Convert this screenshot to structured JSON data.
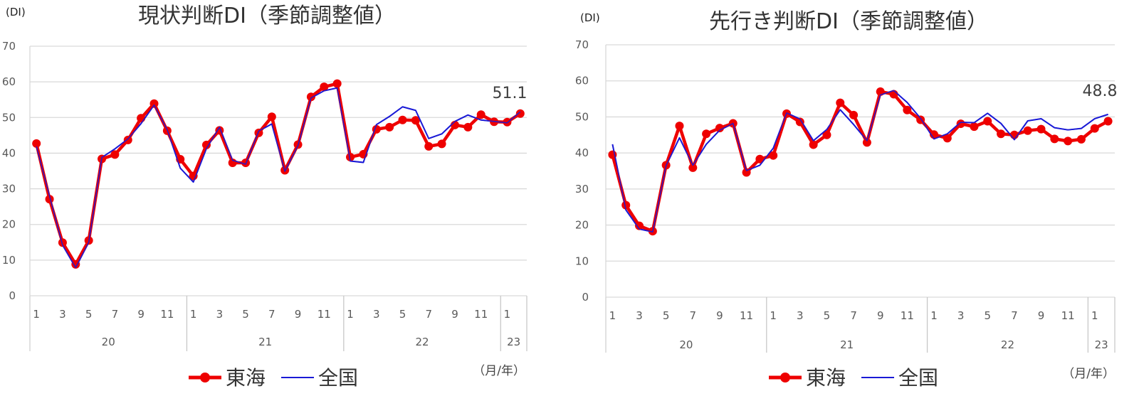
{
  "chart_data": [
    {
      "type": "line",
      "title": "現状判断DI（季節調整値）",
      "ylabel": "(DI)",
      "xunit": "（月/年）",
      "ylim": [
        0,
        70
      ],
      "yticks": [
        "0",
        "10",
        "20",
        "30",
        "40",
        "50",
        "60",
        "70"
      ],
      "x_month_labels": [
        "1",
        "3",
        "5",
        "7",
        "9",
        "11",
        "1",
        "3",
        "5",
        "7",
        "9",
        "11",
        "1",
        "3",
        "5",
        "7",
        "9",
        "11",
        "1"
      ],
      "x_year_labels": [
        "20",
        "21",
        "22",
        "23"
      ],
      "grid": true,
      "legend_position": "bottom",
      "annotation": "51.1",
      "colors": {
        "tokai": "#ee0000",
        "zenkoku": "#1a1ad6"
      },
      "series": [
        {
          "name": "東海",
          "values": [
            42.7,
            27.1,
            14.9,
            8.8,
            15.5,
            38.4,
            39.6,
            43.7,
            49.8,
            53.9,
            46.3,
            38.3,
            33.6,
            42.3,
            46.4,
            37.3,
            37.3,
            45.7,
            50.2,
            35.2,
            42.4,
            55.8,
            58.6,
            59.5,
            38.9,
            39.7,
            46.7,
            47.3,
            49.3,
            49.2,
            41.9,
            42.6,
            47.9,
            47.3,
            50.8,
            48.8,
            48.7,
            51.1
          ]
        },
        {
          "name": "全国",
          "values": [
            41.9,
            28.0,
            14.2,
            7.9,
            15.0,
            38.8,
            41.2,
            44.0,
            48.3,
            53.5,
            46.6,
            35.8,
            31.9,
            41.3,
            47.3,
            38.0,
            36.9,
            46.2,
            48.2,
            34.9,
            42.1,
            55.5,
            57.5,
            58.3,
            37.8,
            37.4,
            48.0,
            50.3,
            53.0,
            52.0,
            44.1,
            45.4,
            48.9,
            50.7,
            49.3,
            48.9,
            48.5,
            51.6
          ]
        }
      ]
    },
    {
      "type": "line",
      "title": "先行き判断DI（季節調整値）",
      "ylabel": "(DI)",
      "xunit": "（月/年）",
      "ylim": [
        0,
        70
      ],
      "yticks": [
        "0",
        "10",
        "20",
        "30",
        "40",
        "50",
        "60",
        "70"
      ],
      "x_month_labels": [
        "1",
        "3",
        "5",
        "7",
        "9",
        "11",
        "1",
        "3",
        "5",
        "7",
        "9",
        "11",
        "1",
        "3",
        "5",
        "7",
        "9",
        "11",
        "1"
      ],
      "x_year_labels": [
        "20",
        "21",
        "22",
        "23"
      ],
      "grid": true,
      "legend_position": "bottom",
      "annotation": "48.8",
      "colors": {
        "tokai": "#ee0000",
        "zenkoku": "#1a1ad6"
      },
      "series": [
        {
          "name": "東海",
          "values": [
            39.5,
            25.5,
            19.8,
            18.3,
            36.6,
            47.5,
            35.9,
            45.3,
            46.9,
            48.2,
            34.6,
            38.3,
            39.3,
            50.9,
            48.6,
            42.3,
            45.0,
            53.9,
            50.5,
            42.9,
            57.0,
            56.3,
            51.9,
            49.2,
            45.1,
            44.1,
            48.1,
            47.3,
            48.8,
            45.3,
            45.0,
            46.2,
            46.6,
            43.9,
            43.3,
            43.8,
            46.8,
            48.8
          ]
        },
        {
          "name": "全国",
          "values": [
            42.4,
            24.2,
            18.9,
            18.1,
            36.5,
            44.2,
            36.6,
            42.4,
            46.3,
            48.2,
            35.1,
            36.6,
            41.3,
            51.1,
            49.4,
            43.4,
            46.5,
            52.0,
            47.9,
            43.4,
            56.1,
            57.3,
            54.0,
            49.6,
            43.9,
            45.3,
            48.5,
            48.4,
            51.0,
            48.2,
            43.7,
            48.9,
            49.5,
            47.0,
            46.4,
            46.8,
            49.5,
            50.7
          ]
        }
      ]
    }
  ]
}
